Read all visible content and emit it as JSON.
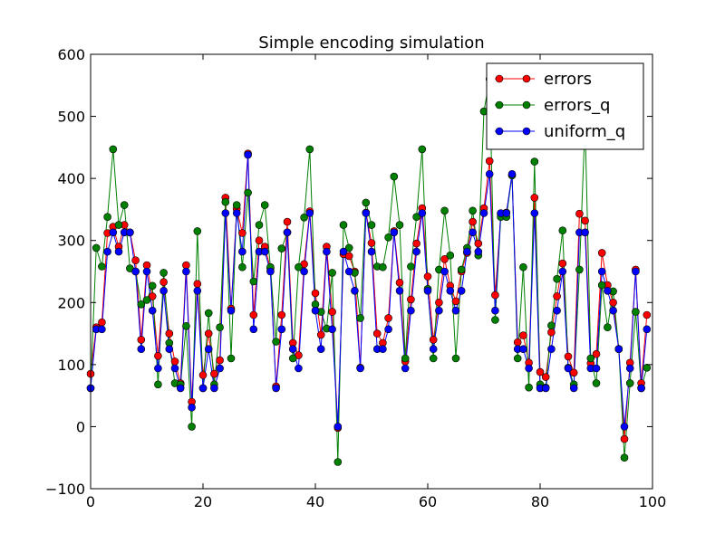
{
  "chart_data": {
    "type": "line",
    "title": "Simple encoding simulation",
    "xlabel": "",
    "ylabel": "",
    "xlim": [
      0,
      100
    ],
    "ylim": [
      -100,
      600
    ],
    "xticks": [
      0,
      20,
      40,
      60,
      80,
      100
    ],
    "yticks": [
      -100,
      0,
      100,
      200,
      300,
      400,
      500,
      600
    ],
    "grid": false,
    "legend_position": "top-right",
    "x": [
      0,
      1,
      2,
      3,
      4,
      5,
      6,
      7,
      8,
      9,
      10,
      11,
      12,
      13,
      14,
      15,
      16,
      17,
      18,
      19,
      20,
      21,
      22,
      23,
      24,
      25,
      26,
      27,
      28,
      29,
      30,
      31,
      32,
      33,
      34,
      35,
      36,
      37,
      38,
      39,
      40,
      41,
      42,
      43,
      44,
      45,
      46,
      47,
      48,
      49,
      50,
      51,
      52,
      53,
      54,
      55,
      56,
      57,
      58,
      59,
      60,
      61,
      62,
      63,
      64,
      65,
      66,
      67,
      68,
      69,
      70,
      71,
      72,
      73,
      74,
      75,
      76,
      77,
      78,
      79,
      80,
      81,
      82,
      83,
      84,
      85,
      86,
      87,
      88,
      89,
      90,
      91,
      92,
      93,
      94,
      95,
      96,
      97,
      98,
      99
    ],
    "series": [
      {
        "name": "errors",
        "color": "#ff0000",
        "values": [
          85,
          160,
          168,
          312,
          322,
          290,
          325,
          313,
          268,
          140,
          260,
          210,
          114,
          233,
          150,
          105,
          70,
          260,
          40,
          230,
          83,
          150,
          85,
          107,
          369,
          190,
          351,
          312,
          440,
          180,
          300,
          290,
          255,
          65,
          180,
          330,
          135,
          115,
          262,
          347,
          215,
          148,
          290,
          185,
          -2,
          278,
          275,
          250,
          95,
          345,
          296,
          150,
          135,
          175,
          315,
          232,
          105,
          205,
          295,
          352,
          242,
          140,
          200,
          270,
          227,
          202,
          250,
          280,
          330,
          295,
          352,
          428,
          212,
          342,
          345,
          405,
          136,
          147,
          103,
          369,
          88,
          80,
          152,
          210,
          263,
          113,
          87,
          343,
          332,
          102,
          117,
          280,
          228,
          200,
          125,
          -20,
          103,
          253,
          70,
          180
        ]
      },
      {
        "name": "errors_q",
        "color": "#008000",
        "values": [
          62,
          288,
          258,
          338,
          447,
          325,
          357,
          255,
          250,
          197,
          204,
          227,
          68,
          248,
          135,
          70,
          68,
          162,
          0,
          315,
          62,
          183,
          68,
          160,
          362,
          110,
          357,
          257,
          377,
          234,
          325,
          357,
          257,
          137,
          287,
          313,
          110,
          257,
          337,
          447,
          197,
          185,
          158,
          248,
          -57,
          325,
          288,
          248,
          175,
          361,
          325,
          258,
          257,
          305,
          403,
          325,
          110,
          258,
          338,
          447,
          222,
          110,
          253,
          348,
          276,
          110,
          253,
          288,
          348,
          276,
          508,
          560,
          172,
          338,
          338,
          405,
          110,
          257,
          63,
          427,
          68,
          63,
          163,
          238,
          316,
          95,
          68,
          253,
          490,
          110,
          70,
          228,
          160,
          218,
          125,
          -50,
          70,
          185,
          62,
          95
        ]
      },
      {
        "name": "uniform_q",
        "color": "#0000ff",
        "values": [
          62,
          157,
          157,
          282,
          313,
          282,
          313,
          313,
          250,
          125,
          250,
          187,
          94,
          219,
          125,
          94,
          62,
          250,
          31,
          219,
          62,
          125,
          62,
          94,
          344,
          187,
          344,
          282,
          438,
          157,
          282,
          282,
          250,
          62,
          157,
          313,
          125,
          94,
          250,
          344,
          187,
          125,
          282,
          157,
          0,
          282,
          250,
          219,
          94,
          344,
          282,
          125,
          125,
          157,
          313,
          219,
          94,
          187,
          282,
          344,
          219,
          125,
          187,
          250,
          219,
          187,
          219,
          282,
          313,
          282,
          344,
          407,
          187,
          344,
          344,
          407,
          125,
          125,
          94,
          344,
          62,
          62,
          125,
          187,
          250,
          94,
          62,
          313,
          313,
          94,
          94,
          250,
          219,
          187,
          125,
          0,
          94,
          250,
          62,
          157
        ]
      }
    ]
  }
}
